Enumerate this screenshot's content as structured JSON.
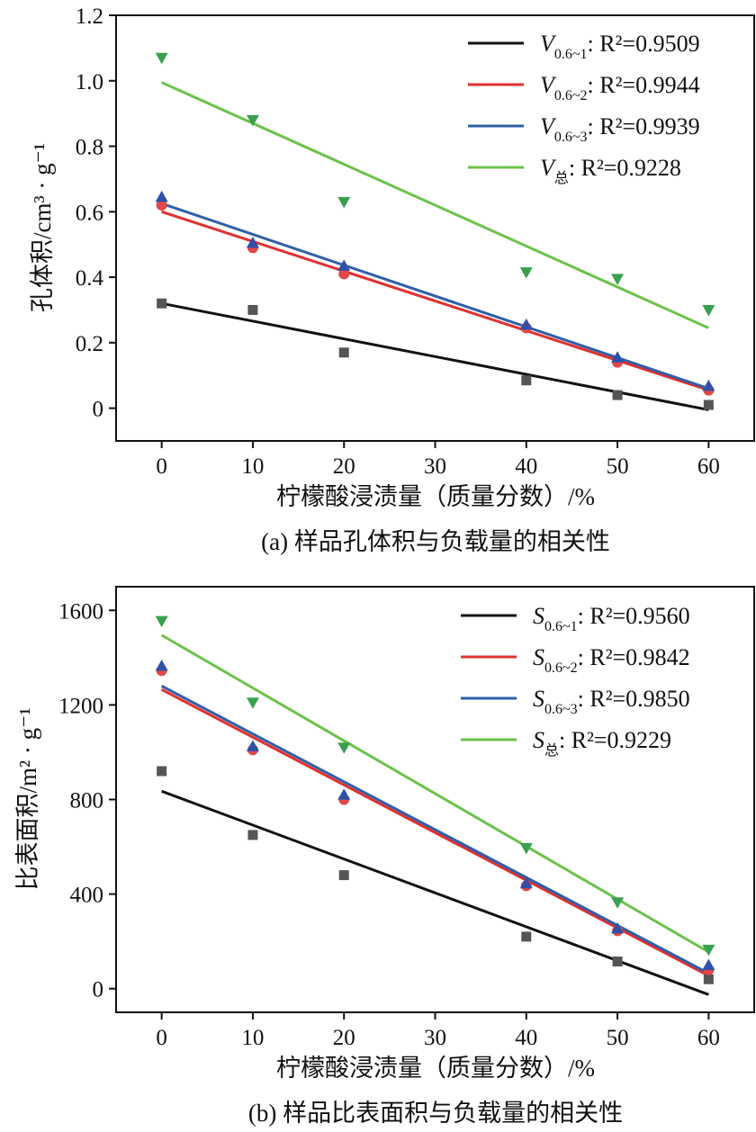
{
  "chart_data": [
    {
      "type": "scatter",
      "caption": "(a) 样品孔体积与负载量的相关性",
      "xlabel": "柠檬酸浸渍量（质量分数）/%",
      "ylabel": "孔体积/cm³ · g⁻¹",
      "xlim": [
        -5,
        65
      ],
      "ylim": [
        -0.1,
        1.2
      ],
      "xticks": [
        "0",
        "10",
        "20",
        "30",
        "40",
        "50",
        "60"
      ],
      "yticks": [
        "0",
        "0.2",
        "0.4",
        "0.6",
        "0.8",
        "1.0",
        "1.2"
      ],
      "x": [
        0,
        10,
        20,
        40,
        50,
        60
      ],
      "series": [
        {
          "name": "V0.6~1",
          "sym": "V",
          "sub": "0.6~1",
          "r2": "R²=0.9509",
          "color": "#111111",
          "marker": "square",
          "markerColor": "#555555",
          "values": [
            0.32,
            0.3,
            0.17,
            0.085,
            0.04,
            0.01
          ],
          "fit": [
            0.32,
            -0.005
          ]
        },
        {
          "name": "V0.6~2",
          "sym": "V",
          "sub": "0.6~2",
          "r2": "R²=0.9944",
          "color": "#e03030",
          "marker": "circle",
          "markerColor": "#e04848",
          "values": [
            0.62,
            0.49,
            0.41,
            0.245,
            0.14,
            0.055
          ],
          "fit": [
            0.6,
            0.055
          ]
        },
        {
          "name": "V0.6~3",
          "sym": "V",
          "sub": "0.6~3",
          "r2": "R²=0.9939",
          "color": "#2f5fa8",
          "marker": "triangle-up",
          "markerColor": "#3050a8",
          "values": [
            0.645,
            0.505,
            0.435,
            0.255,
            0.155,
            0.068
          ],
          "fit": [
            0.625,
            0.06
          ]
        },
        {
          "name": "V总",
          "sym": "V",
          "sub": "总",
          "r2": "R²=0.9228",
          "color": "#6cc24a",
          "marker": "triangle-down",
          "markerColor": "#3aa050",
          "values": [
            1.07,
            0.88,
            0.63,
            0.415,
            0.395,
            0.3
          ],
          "fit": [
            0.995,
            0.245
          ]
        }
      ]
    },
    {
      "type": "scatter",
      "caption": "(b) 样品比表面积与负载量的相关性",
      "xlabel": "柠檬酸浸渍量（质量分数）/%",
      "ylabel": "比表面积/m² · g⁻¹",
      "xlim": [
        -5,
        65
      ],
      "ylim": [
        -100,
        1700
      ],
      "xticks": [
        "0",
        "10",
        "20",
        "30",
        "40",
        "50",
        "60"
      ],
      "yticks": [
        "0",
        "400",
        "800",
        "1200",
        "1600"
      ],
      "x": [
        0,
        10,
        20,
        40,
        50,
        60
      ],
      "series": [
        {
          "name": "S0.6~1",
          "sym": "S",
          "sub": "0.6~1",
          "r2": "R²=0.9560",
          "color": "#111111",
          "marker": "square",
          "markerColor": "#555555",
          "values": [
            920,
            650,
            480,
            220,
            115,
            40
          ],
          "fit": [
            835,
            -25
          ]
        },
        {
          "name": "S0.6~2",
          "sym": "S",
          "sub": "0.6~2",
          "r2": "R²=0.9842",
          "color": "#e03030",
          "marker": "circle",
          "markerColor": "#e04848",
          "values": [
            1345,
            1010,
            800,
            435,
            245,
            80
          ],
          "fit": [
            1265,
            55
          ]
        },
        {
          "name": "S0.6~3",
          "sym": "S",
          "sub": "0.6~3",
          "r2": "R²=0.9850",
          "color": "#2f5fa8",
          "marker": "triangle-up",
          "markerColor": "#3050a8",
          "values": [
            1365,
            1025,
            820,
            445,
            255,
            100
          ],
          "fit": [
            1280,
            65
          ]
        },
        {
          "name": "S总",
          "sym": "S",
          "sub": "总",
          "r2": "R²=0.9229",
          "color": "#6cc24a",
          "marker": "triangle-down",
          "markerColor": "#3aa050",
          "values": [
            1555,
            1210,
            1020,
            595,
            365,
            165
          ],
          "fit": [
            1495,
            155
          ]
        }
      ]
    }
  ]
}
